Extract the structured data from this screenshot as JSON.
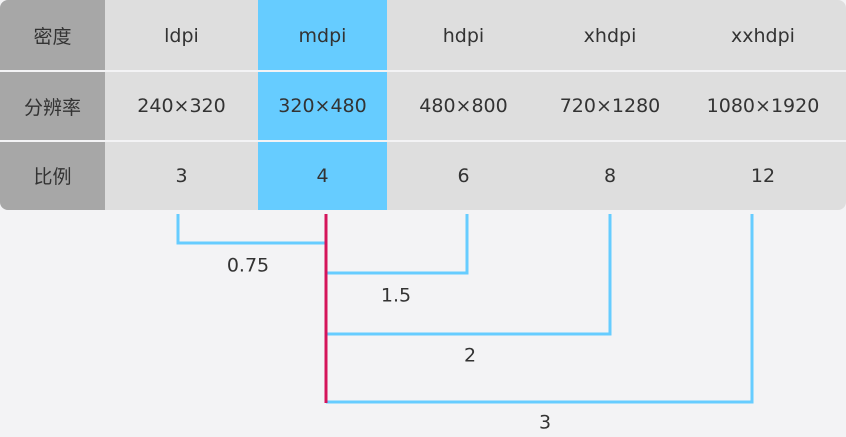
{
  "table": {
    "rows": [
      [
        "密度",
        "ldpi",
        "mdpi",
        "hdpi",
        "xhdpi",
        "xxhdpi"
      ],
      [
        "分辨率",
        "240×320",
        "320×480",
        "480×800",
        "720×1280",
        "1080×1920"
      ],
      [
        "比例",
        "3",
        "4",
        "6",
        "8",
        "12"
      ]
    ]
  },
  "ratios": [
    "0.75",
    "1.5",
    "2",
    "3"
  ]
}
